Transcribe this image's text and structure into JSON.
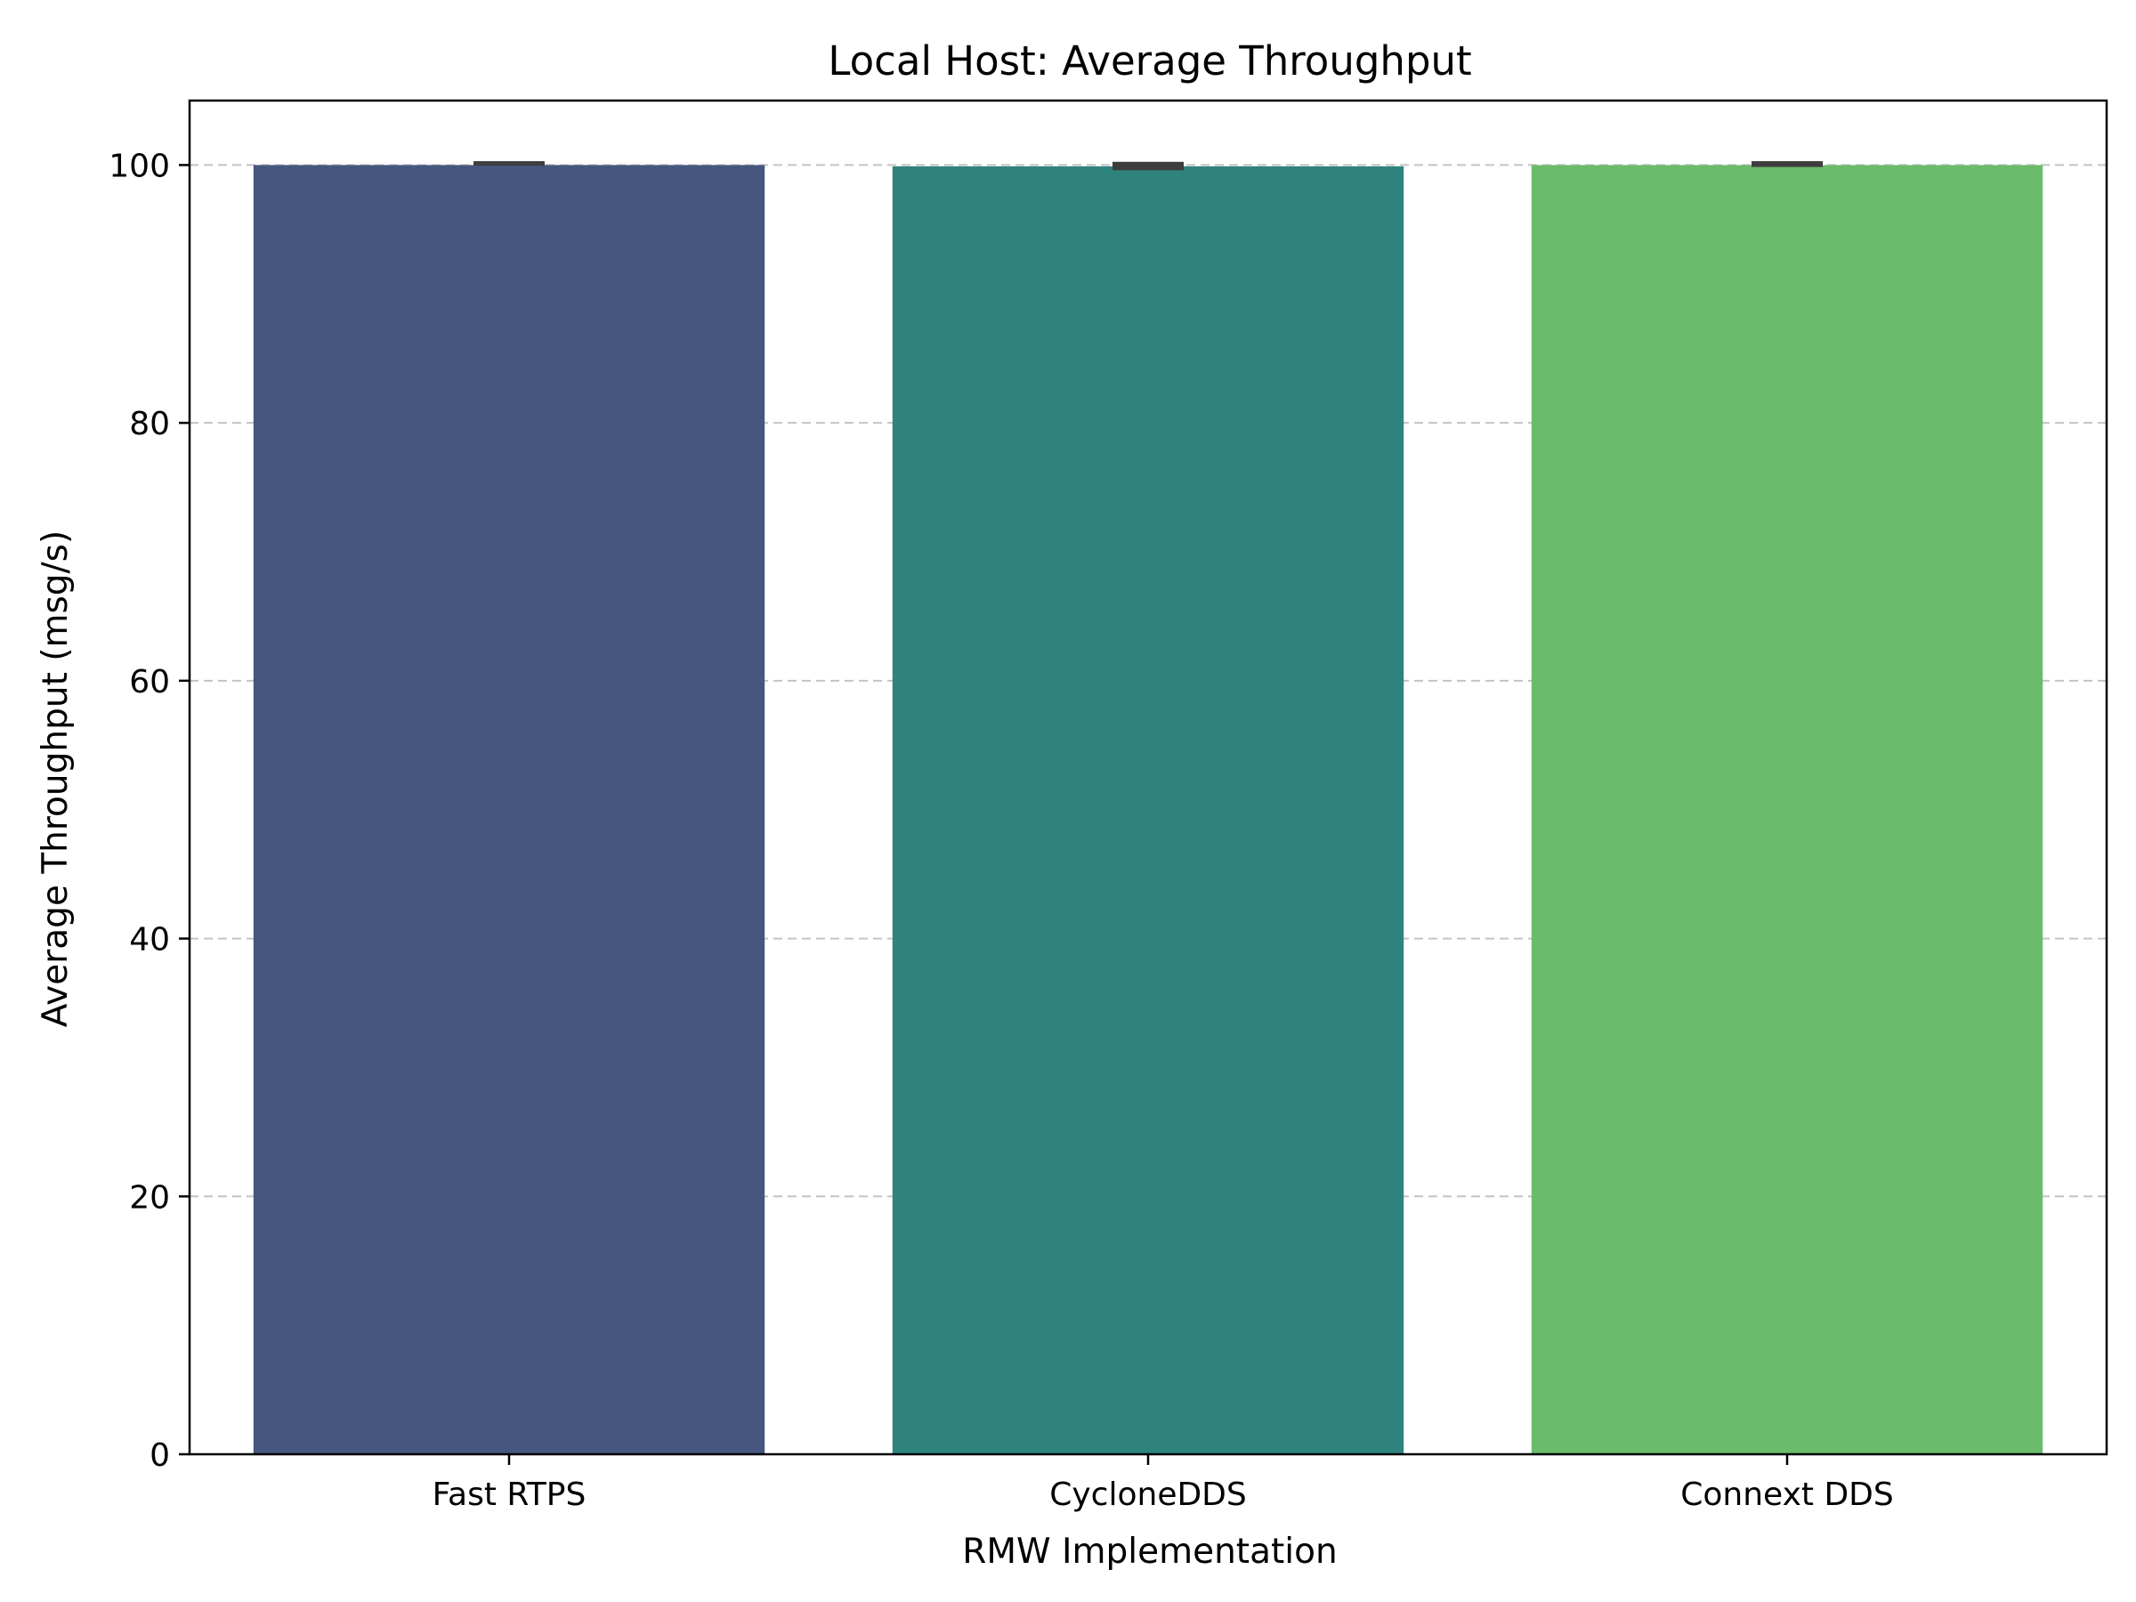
{
  "chart_data": {
    "type": "bar",
    "title": "Local Host: Average Throughput",
    "xlabel": "RMW Implementation",
    "ylabel": "Average Throughput (msg/s)",
    "categories": [
      "Fast RTPS",
      "CycloneDDS",
      "Connext DDS"
    ],
    "values": [
      100.0,
      99.9,
      100.0
    ],
    "error_low": [
      99.95,
      99.6,
      99.85
    ],
    "error_high": [
      100.3,
      100.25,
      100.3
    ],
    "colors": [
      "#46577f",
      "#2e837d",
      "#6bbb6c"
    ],
    "error_color": "#3d3d3d",
    "ylim": [
      0,
      105
    ],
    "yticks": [
      0,
      20,
      40,
      60,
      80,
      100
    ],
    "ytick_labels": [
      "0",
      "20",
      "40",
      "60",
      "80",
      "100"
    ],
    "grid": "y-dashed"
  }
}
